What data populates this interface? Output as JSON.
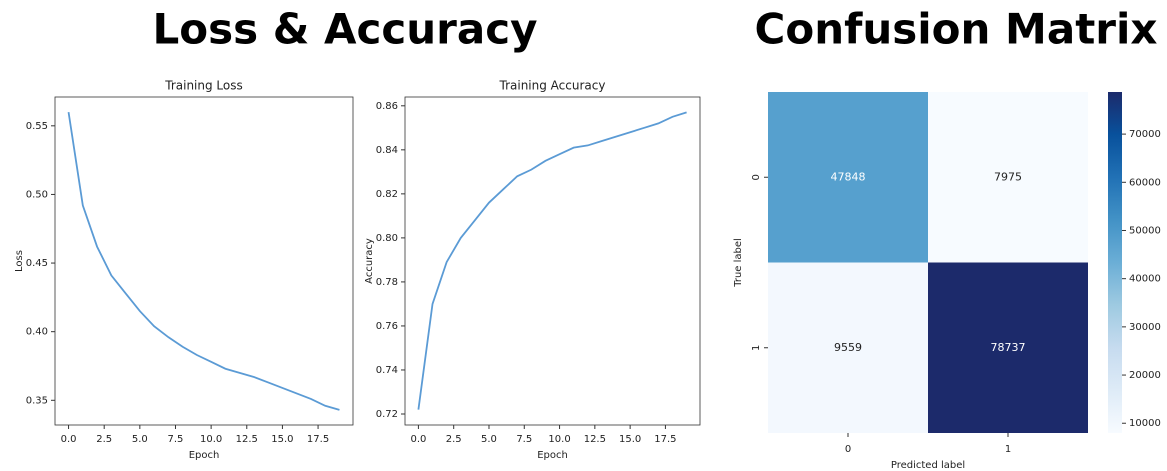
{
  "headings": [
    "Loss & Accuracy",
    "Confusion Matrix"
  ],
  "chart_data": [
    {
      "type": "line",
      "title": "Training Loss",
      "xlabel": "Epoch",
      "ylabel": "Loss",
      "color": "#5b9bd5",
      "x": [
        0,
        1,
        2,
        3,
        4,
        5,
        6,
        7,
        8,
        9,
        10,
        11,
        12,
        13,
        14,
        15,
        16,
        17,
        18,
        19
      ],
      "values": [
        0.56,
        0.492,
        0.462,
        0.441,
        0.428,
        0.415,
        0.404,
        0.396,
        0.389,
        0.383,
        0.378,
        0.373,
        0.37,
        0.367,
        0.363,
        0.359,
        0.355,
        0.351,
        0.346,
        0.343
      ],
      "xlim": [
        -0.95,
        19.95
      ],
      "xticks": [
        {
          "value": 0,
          "label": "0.0"
        },
        2.5,
        {
          "value": 5,
          "label": "5.0"
        },
        7.5,
        {
          "value": 10,
          "label": "10.0"
        },
        12.5,
        {
          "value": 15,
          "label": "15.0"
        },
        17.5
      ],
      "ylim": [
        0.332,
        0.571
      ],
      "yticks": [
        0.35,
        {
          "value": 0.4,
          "label": "0.40"
        },
        0.45,
        {
          "value": 0.5,
          "label": "0.50"
        },
        0.55
      ]
    },
    {
      "type": "line",
      "title": "Training Accuracy",
      "xlabel": "Epoch",
      "ylabel": "Accuracy",
      "color": "#5b9bd5",
      "x": [
        0,
        1,
        2,
        3,
        4,
        5,
        6,
        7,
        8,
        9,
        10,
        11,
        12,
        13,
        14,
        15,
        16,
        17,
        18,
        19
      ],
      "values": [
        0.722,
        0.77,
        0.789,
        0.8,
        0.808,
        0.816,
        0.822,
        0.828,
        0.831,
        0.835,
        0.838,
        0.841,
        0.842,
        0.844,
        0.846,
        0.848,
        0.85,
        0.852,
        0.855,
        0.857
      ],
      "xlim": [
        -0.95,
        19.95
      ],
      "xticks": [
        {
          "value": 0,
          "label": "0.0"
        },
        2.5,
        {
          "value": 5,
          "label": "5.0"
        },
        7.5,
        {
          "value": 10,
          "label": "10.0"
        },
        12.5,
        {
          "value": 15,
          "label": "15.0"
        },
        17.5
      ],
      "ylim": [
        0.715,
        0.864
      ],
      "yticks": [
        0.72,
        0.74,
        0.76,
        0.78,
        {
          "value": 0.8,
          "label": "0.80"
        },
        0.82,
        0.84,
        0.86
      ]
    },
    {
      "type": "heatmap",
      "xlabel": "Predicted label",
      "ylabel": "True label",
      "colormap": "Blues",
      "x_categories": [
        "0",
        "1"
      ],
      "y_categories": [
        "0",
        "1"
      ],
      "values": [
        [
          47848,
          7975
        ],
        [
          9559,
          78737
        ]
      ],
      "clim": [
        7975,
        78737
      ],
      "cticks": [
        10000,
        20000,
        30000,
        40000,
        50000,
        60000,
        70000
      ]
    }
  ]
}
